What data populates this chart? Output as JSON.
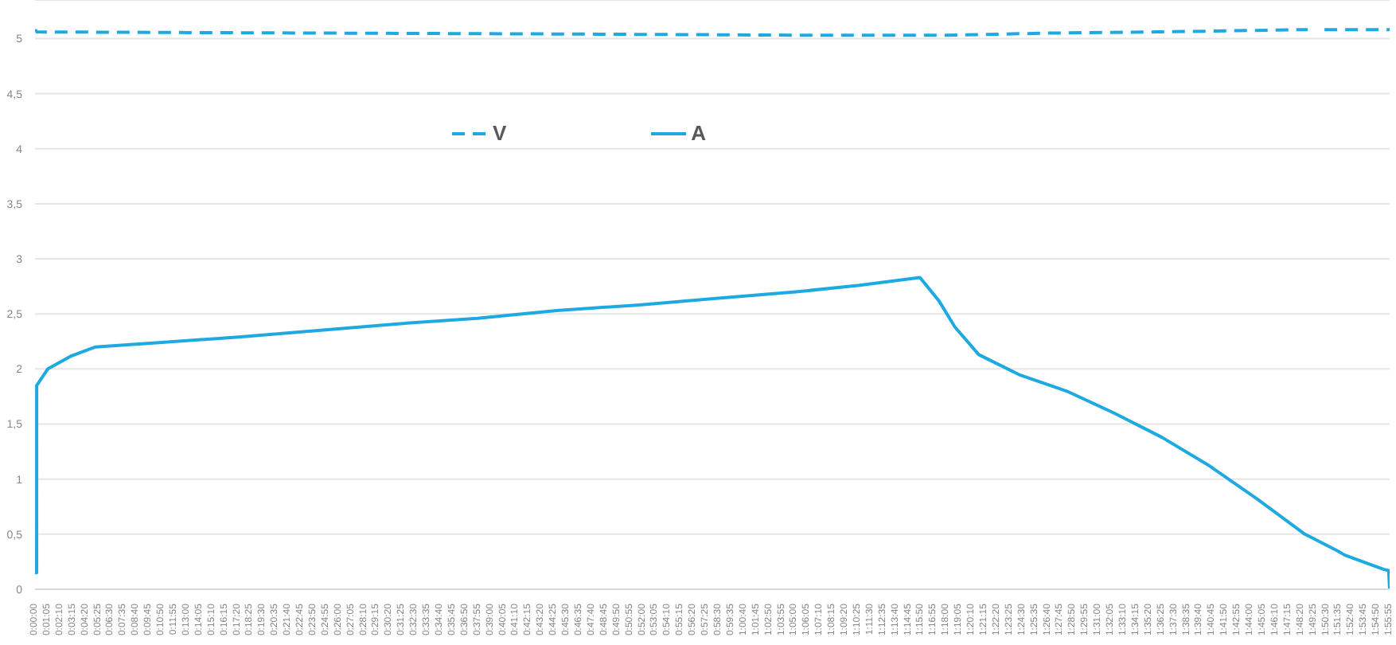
{
  "chart_data": {
    "type": "line",
    "xlim": [
      0,
      1.9319
    ],
    "ylim": [
      0,
      5.35
    ],
    "yticks": [
      {
        "value": 0,
        "label": "0"
      },
      {
        "value": 0.5,
        "label": "0,5"
      },
      {
        "value": 1,
        "label": "1"
      },
      {
        "value": 1.5,
        "label": "1,5"
      },
      {
        "value": 2,
        "label": "2"
      },
      {
        "value": 2.5,
        "label": "2,5"
      },
      {
        "value": 3,
        "label": "3"
      },
      {
        "value": 3.5,
        "label": "3,5"
      },
      {
        "value": 4,
        "label": "4"
      },
      {
        "value": 4.5,
        "label": "4,5"
      },
      {
        "value": 5,
        "label": "5"
      }
    ],
    "xticks": [
      {
        "value": 0,
        "label": "0:00:00"
      },
      {
        "value": 0.0181,
        "label": "0:01:05"
      },
      {
        "value": 0.0361,
        "label": "0:02:10"
      },
      {
        "value": 0.0542,
        "label": "0:03:15"
      },
      {
        "value": 0.0722,
        "label": "0:04:20"
      },
      {
        "value": 0.0903,
        "label": "0:05:25"
      },
      {
        "value": 0.1083,
        "label": "0:06:30"
      },
      {
        "value": 0.1264,
        "label": "0:07:35"
      },
      {
        "value": 0.1444,
        "label": "0:08:40"
      },
      {
        "value": 0.1625,
        "label": "0:09:45"
      },
      {
        "value": 0.1806,
        "label": "0:10:50"
      },
      {
        "value": 0.1986,
        "label": "0:11:55"
      },
      {
        "value": 0.2167,
        "label": "0:13:00"
      },
      {
        "value": 0.2347,
        "label": "0:14:05"
      },
      {
        "value": 0.2528,
        "label": "0:15:10"
      },
      {
        "value": 0.2708,
        "label": "0:16:15"
      },
      {
        "value": 0.2889,
        "label": "0:17:20"
      },
      {
        "value": 0.3069,
        "label": "0:18:25"
      },
      {
        "value": 0.325,
        "label": "0:19:30"
      },
      {
        "value": 0.3431,
        "label": "0:20:35"
      },
      {
        "value": 0.3611,
        "label": "0:21:40"
      },
      {
        "value": 0.3792,
        "label": "0:22:45"
      },
      {
        "value": 0.3972,
        "label": "0:23:50"
      },
      {
        "value": 0.4153,
        "label": "0:24:55"
      },
      {
        "value": 0.4333,
        "label": "0:26:00"
      },
      {
        "value": 0.4514,
        "label": "0:27:05"
      },
      {
        "value": 0.4694,
        "label": "0:28:10"
      },
      {
        "value": 0.4875,
        "label": "0:29:15"
      },
      {
        "value": 0.5056,
        "label": "0:30:20"
      },
      {
        "value": 0.5236,
        "label": "0:31:25"
      },
      {
        "value": 0.5417,
        "label": "0:32:30"
      },
      {
        "value": 0.5597,
        "label": "0:33:35"
      },
      {
        "value": 0.5778,
        "label": "0:34:40"
      },
      {
        "value": 0.5958,
        "label": "0:35:45"
      },
      {
        "value": 0.6139,
        "label": "0:36:50"
      },
      {
        "value": 0.6319,
        "label": "0:37:55"
      },
      {
        "value": 0.65,
        "label": "0:39:00"
      },
      {
        "value": 0.6681,
        "label": "0:40:05"
      },
      {
        "value": 0.6861,
        "label": "0:41:10"
      },
      {
        "value": 0.7042,
        "label": "0:42:15"
      },
      {
        "value": 0.7222,
        "label": "0:43:20"
      },
      {
        "value": 0.7403,
        "label": "0:44:25"
      },
      {
        "value": 0.7583,
        "label": "0:45:30"
      },
      {
        "value": 0.7764,
        "label": "0:46:35"
      },
      {
        "value": 0.7944,
        "label": "0:47:40"
      },
      {
        "value": 0.8125,
        "label": "0:48:45"
      },
      {
        "value": 0.8306,
        "label": "0:49:50"
      },
      {
        "value": 0.8486,
        "label": "0:50:55"
      },
      {
        "value": 0.8667,
        "label": "0:52:00"
      },
      {
        "value": 0.8847,
        "label": "0:53:05"
      },
      {
        "value": 0.9028,
        "label": "0:54:10"
      },
      {
        "value": 0.9208,
        "label": "0:55:15"
      },
      {
        "value": 0.9389,
        "label": "0:56:20"
      },
      {
        "value": 0.9569,
        "label": "0:57:25"
      },
      {
        "value": 0.975,
        "label": "0:58:30"
      },
      {
        "value": 0.9931,
        "label": "0:59:35"
      },
      {
        "value": 1.0111,
        "label": "1:00:40"
      },
      {
        "value": 1.0292,
        "label": "1:01:45"
      },
      {
        "value": 1.0472,
        "label": "1:02:50"
      },
      {
        "value": 1.0653,
        "label": "1:03:55"
      },
      {
        "value": 1.0833,
        "label": "1:05:00"
      },
      {
        "value": 1.1014,
        "label": "1:06:05"
      },
      {
        "value": 1.1194,
        "label": "1:07:10"
      },
      {
        "value": 1.1375,
        "label": "1:08:15"
      },
      {
        "value": 1.1556,
        "label": "1:09:20"
      },
      {
        "value": 1.1736,
        "label": "1:10:25"
      },
      {
        "value": 1.1917,
        "label": "1:11:30"
      },
      {
        "value": 1.2097,
        "label": "1:12:35"
      },
      {
        "value": 1.2278,
        "label": "1:13:40"
      },
      {
        "value": 1.2458,
        "label": "1:14:45"
      },
      {
        "value": 1.2639,
        "label": "1:15:50"
      },
      {
        "value": 1.2819,
        "label": "1:16:55"
      },
      {
        "value": 1.3,
        "label": "1:18:00"
      },
      {
        "value": 1.3181,
        "label": "1:19:05"
      },
      {
        "value": 1.3361,
        "label": "1:20:10"
      },
      {
        "value": 1.3542,
        "label": "1:21:15"
      },
      {
        "value": 1.3722,
        "label": "1:22:20"
      },
      {
        "value": 1.3903,
        "label": "1:23:25"
      },
      {
        "value": 1.4083,
        "label": "1:24:30"
      },
      {
        "value": 1.4264,
        "label": "1:25:35"
      },
      {
        "value": 1.4444,
        "label": "1:26:40"
      },
      {
        "value": 1.4625,
        "label": "1:27:45"
      },
      {
        "value": 1.4806,
        "label": "1:28:50"
      },
      {
        "value": 1.4986,
        "label": "1:29:55"
      },
      {
        "value": 1.5167,
        "label": "1:31:00"
      },
      {
        "value": 1.5347,
        "label": "1:32:05"
      },
      {
        "value": 1.5528,
        "label": "1:33:10"
      },
      {
        "value": 1.5708,
        "label": "1:34:15"
      },
      {
        "value": 1.5889,
        "label": "1:35:20"
      },
      {
        "value": 1.6069,
        "label": "1:36:25"
      },
      {
        "value": 1.625,
        "label": "1:37:30"
      },
      {
        "value": 1.6431,
        "label": "1:38:35"
      },
      {
        "value": 1.6611,
        "label": "1:39:40"
      },
      {
        "value": 1.6792,
        "label": "1:40:45"
      },
      {
        "value": 1.6972,
        "label": "1:41:50"
      },
      {
        "value": 1.7153,
        "label": "1:42:55"
      },
      {
        "value": 1.7333,
        "label": "1:44:00"
      },
      {
        "value": 1.7514,
        "label": "1:45:05"
      },
      {
        "value": 1.7694,
        "label": "1:46:10"
      },
      {
        "value": 1.7875,
        "label": "1:47:15"
      },
      {
        "value": 1.8056,
        "label": "1:48:20"
      },
      {
        "value": 1.8236,
        "label": "1:49:25"
      },
      {
        "value": 1.8417,
        "label": "1:50:30"
      },
      {
        "value": 1.8597,
        "label": "1:51:35"
      },
      {
        "value": 1.8778,
        "label": "1:52:40"
      },
      {
        "value": 1.8958,
        "label": "1:53:45"
      },
      {
        "value": 1.9139,
        "label": "1:54:50"
      },
      {
        "value": 1.9319,
        "label": "1:55:55"
      }
    ],
    "grid": "y",
    "legend": "top",
    "marker": "none",
    "series": [
      {
        "name": "V",
        "color": "#1fa9e1",
        "line_style": "dashed",
        "x": [
          0,
          0.003,
          0.4,
          0.8,
          1.1,
          1.3,
          1.45,
          1.6,
          1.8,
          1.815,
          1.816,
          1.838,
          1.839,
          1.9319
        ],
        "values": [
          5.08,
          5.06,
          5.05,
          5.04,
          5.03,
          5.03,
          5.05,
          5.06,
          5.08,
          5.08,
          null,
          null,
          5.08,
          5.08
        ]
      },
      {
        "name": "A",
        "color": "#1fa9e1",
        "line_style": "solid",
        "x": [
          0,
          0.0023,
          0.0024,
          0.0182,
          0.0522,
          0.0862,
          0.177,
          0.2905,
          0.404,
          0.5175,
          0.631,
          0.744,
          0.858,
          0.971,
          1.085,
          1.176,
          1.262,
          1.289,
          1.312,
          1.346,
          1.403,
          1.471,
          1.539,
          1.607,
          1.675,
          1.743,
          1.811,
          1.857,
          1.868,
          1.902,
          1.924,
          1.9305,
          1.9319
        ],
        "values": [
          0.15,
          0.15,
          1.85,
          2.0,
          2.12,
          2.2,
          2.24,
          2.29,
          2.35,
          2.41,
          2.46,
          2.53,
          2.58,
          2.64,
          2.7,
          2.76,
          2.83,
          2.62,
          2.38,
          2.13,
          1.95,
          1.8,
          1.6,
          1.38,
          1.12,
          0.82,
          0.5,
          0.35,
          0.31,
          0.23,
          0.18,
          0.17,
          0
        ]
      }
    ]
  }
}
